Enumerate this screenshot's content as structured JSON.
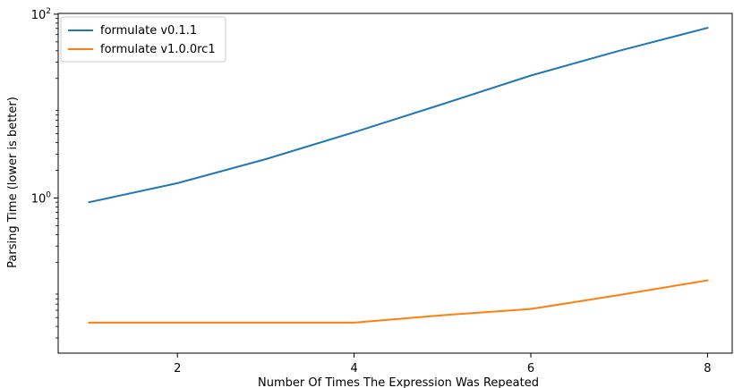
{
  "chart_data": {
    "type": "line",
    "title": "",
    "xlabel": "Number Of Times The Expression Was Repeated",
    "ylabel": "Parsing Time (lower is better)",
    "x_ticks": [
      2,
      4,
      6,
      8
    ],
    "x_tick_labels": [
      "2",
      "4",
      "6",
      "8"
    ],
    "xlim": [
      0.65,
      8.28
    ],
    "y_scale": "log",
    "ylim": [
      0.0205,
      102
    ],
    "y_tick_values": [
      1,
      100
    ],
    "y_tick_labels": [
      {
        "base": "10",
        "exp": "0"
      },
      {
        "base": "10",
        "exp": "2"
      }
    ],
    "grid": false,
    "legend_position": "top-left",
    "x": [
      1,
      2,
      3,
      4,
      5,
      6,
      7,
      8
    ],
    "series": [
      {
        "name": "formulate v0.1.1",
        "color": "#1f77b4",
        "values": [
          0.9,
          1.45,
          2.65,
          5.2,
          10.5,
          21.5,
          40,
          71
        ]
      },
      {
        "name": "formulate v1.0.0rc1",
        "color": "#ff7f0e",
        "values": [
          0.044,
          0.044,
          0.044,
          0.044,
          0.053,
          0.062,
          0.088,
          0.127
        ]
      }
    ]
  }
}
